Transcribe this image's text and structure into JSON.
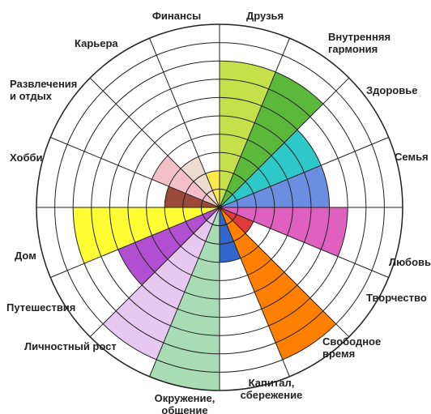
{
  "chart_data": {
    "type": "polar",
    "categories": [
      "Друзья",
      "Внутренняя\nгармония",
      "Здоровье",
      "Семья",
      "Любовь",
      "Творчество",
      "Свободное\nвремя",
      "Капитал,\nсбережение",
      "Окружение,\nобщение",
      "Личностный рост",
      "Путешествия",
      "Дом",
      "Хобби",
      "Развлечения\nи отдых",
      "Карьера",
      "Финансы"
    ],
    "values": [
      8,
      8,
      6,
      6,
      7,
      2,
      9,
      3,
      10,
      9,
      6,
      8,
      3,
      4,
      3,
      2
    ],
    "colors": [
      "#c5e04a",
      "#5cb83a",
      "#2ec8c8",
      "#6b8ee0",
      "#e060c0",
      "#e03b3b",
      "#ff8000",
      "#3366cc",
      "#a8dcb4",
      "#e6c8f0",
      "#b050d0",
      "#ffff33",
      "#9b4a3a",
      "#f4c0c8",
      "#eedcd0",
      "#ffe84d"
    ],
    "rlim": [
      0,
      10
    ],
    "rticks": [
      1,
      2,
      3,
      4,
      5,
      6,
      7,
      8,
      9,
      10
    ],
    "grid": true
  }
}
